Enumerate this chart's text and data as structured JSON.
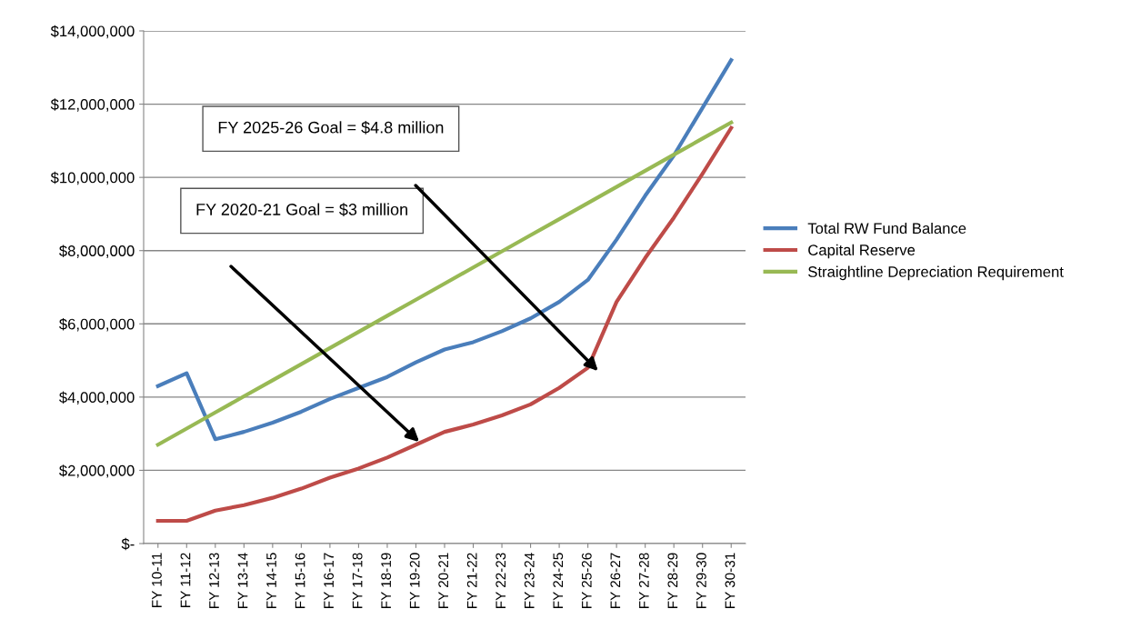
{
  "chart_data": {
    "type": "line",
    "categories": [
      "FY 10-11",
      "FY 11-12",
      "FY 12-13",
      "FY 13-14",
      "FY 14-15",
      "FY 15-16",
      "FY 16-17",
      "FY 17-18",
      "FY 18-19",
      "FY 19-20",
      "FY 20-21",
      "FY 21-22",
      "FY 22-23",
      "FY 23-24",
      "FY 24-25",
      "FY 25-26",
      "FY 26-27",
      "FY 27-28",
      "FY 28-29",
      "FY 29-30",
      "FY 30-31"
    ],
    "series": [
      {
        "name": "Total RW Fund Balance",
        "color": "#4a7ebb",
        "values": [
          4300000,
          4650000,
          2850000,
          3050000,
          3300000,
          3600000,
          3950000,
          4250000,
          4550000,
          4950000,
          5300000,
          5500000,
          5800000,
          6150000,
          6600000,
          7200000,
          8300000,
          9500000,
          10600000,
          11900000,
          13200000
        ]
      },
      {
        "name": "Capital Reserve",
        "color": "#be4b48",
        "values": [
          620000,
          620000,
          900000,
          1050000,
          1250000,
          1500000,
          1800000,
          2050000,
          2350000,
          2700000,
          3050000,
          3250000,
          3500000,
          3800000,
          4250000,
          4800000,
          6600000,
          7800000,
          8900000,
          10100000,
          11350000
        ]
      },
      {
        "name": "Straightline Depreciation Requirement",
        "color": "#98b954",
        "values": [
          2700000,
          3140000,
          3580000,
          4020000,
          4460000,
          4900000,
          5340000,
          5780000,
          6220000,
          6660000,
          7100000,
          7540000,
          7980000,
          8420000,
          8860000,
          9300000,
          9740000,
          10180000,
          10620000,
          11060000,
          11500000
        ]
      }
    ],
    "ylim": [
      0,
      14000000
    ],
    "yticks": [
      {
        "value": 0,
        "label": "$-"
      },
      {
        "value": 2000000,
        "label": "$2,000,000"
      },
      {
        "value": 4000000,
        "label": "$4,000,000"
      },
      {
        "value": 6000000,
        "label": "$6,000,000"
      },
      {
        "value": 8000000,
        "label": "$8,000,000"
      },
      {
        "value": 10000000,
        "label": "$10,000,000"
      },
      {
        "value": 12000000,
        "label": "$12,000,000"
      },
      {
        "value": 14000000,
        "label": "$14,000,000"
      }
    ],
    "grid": "y",
    "legend": "right",
    "marker": "none",
    "line_style": "solid",
    "annotations": [
      "FY 2025-26 Goal = $4.8 million",
      "FY 2020-21 Goal = $3 million"
    ]
  }
}
